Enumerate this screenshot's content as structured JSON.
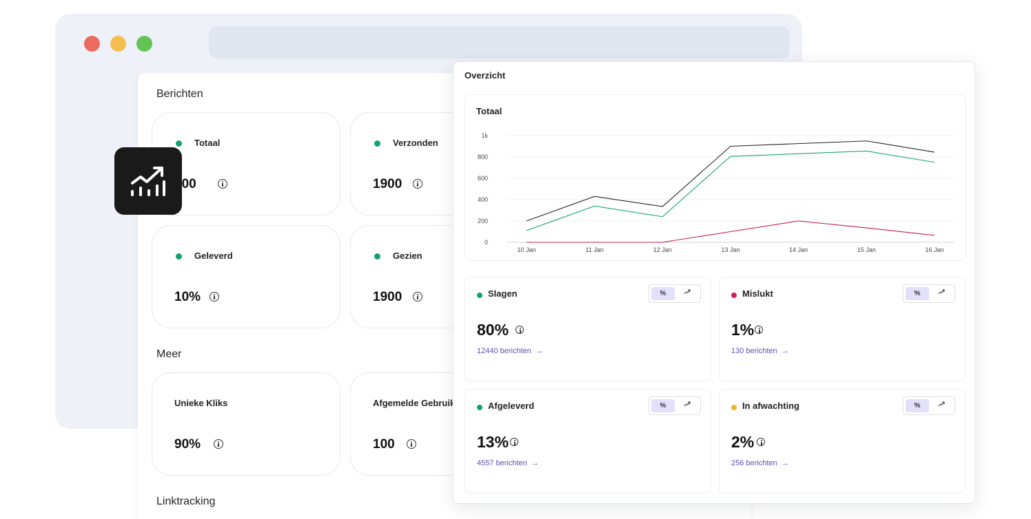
{
  "berichten": {
    "title": "Berichten",
    "cards": [
      {
        "label": "Totaal",
        "value": "500"
      },
      {
        "label": "Verzonden",
        "value": "1900"
      },
      {
        "label": "Geleverd",
        "value": "10%"
      },
      {
        "label": "Gezien",
        "value": "1900"
      }
    ]
  },
  "meer": {
    "title": "Meer",
    "cards": [
      {
        "label": "Unieke Kliks",
        "value": "90%"
      },
      {
        "label": "Afgemelde Gebruik",
        "value": "100"
      }
    ]
  },
  "linktracking": {
    "title": "Linktracking"
  },
  "overview": {
    "title": "Overzicht",
    "chart_title": "Totaal",
    "stats": [
      {
        "label": "Slagen",
        "value": "80%",
        "link": "12440 berichten",
        "dot_color": "#12a36a",
        "pct_label": "%"
      },
      {
        "label": "Mislukt",
        "value": "1%",
        "link": "130 berichten",
        "dot_color": "#d6195f",
        "pct_label": "%"
      },
      {
        "label": "Afgeleverd",
        "value": "13%",
        "link": "4557 berichten",
        "dot_color": "#12a36a",
        "pct_label": "%"
      },
      {
        "label": "In afwachting",
        "value": "2%",
        "link": "256 berichten",
        "dot_color": "#f0b429",
        "pct_label": "%"
      }
    ]
  },
  "chart_data": {
    "type": "line",
    "title": "Totaal",
    "x": [
      "10 Jan",
      "11 Jan",
      "12 Jan",
      "13 Jan",
      "14 Jan",
      "15 Jan",
      "16 Jan"
    ],
    "y_ticks": [
      "0",
      "200",
      "400",
      "600",
      "800",
      "1k"
    ],
    "ylim": [
      0,
      1000
    ],
    "grid": true,
    "series": [
      {
        "color": "#222222",
        "values": [
          200,
          430,
          335,
          900,
          925,
          950,
          845
        ]
      },
      {
        "color": "#1aa57a",
        "values": [
          110,
          340,
          240,
          805,
          830,
          855,
          750
        ]
      },
      {
        "color": "#c2185b",
        "values": [
          0,
          0,
          0,
          100,
          200,
          135,
          65
        ]
      }
    ]
  }
}
